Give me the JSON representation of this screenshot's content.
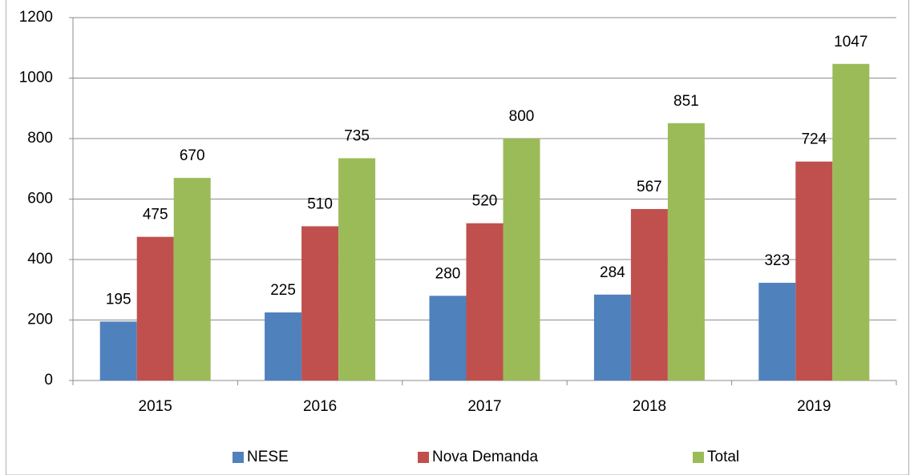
{
  "chart_data": {
    "type": "bar",
    "categories": [
      "2015",
      "2016",
      "2017",
      "2018",
      "2019"
    ],
    "series": [
      {
        "name": "NESE",
        "color": "#4f81bd",
        "values": [
          195,
          225,
          280,
          284,
          323
        ]
      },
      {
        "name": "Nova Demanda",
        "color": "#c0504d",
        "values": [
          475,
          510,
          520,
          567,
          724
        ]
      },
      {
        "name": "Total",
        "color": "#9bbb59",
        "values": [
          670,
          735,
          800,
          851,
          1047
        ]
      }
    ],
    "ylim": [
      0,
      1200
    ],
    "yticks": [
      0,
      200,
      400,
      600,
      800,
      1000,
      1200
    ],
    "grid": true,
    "legend": "bottom"
  }
}
